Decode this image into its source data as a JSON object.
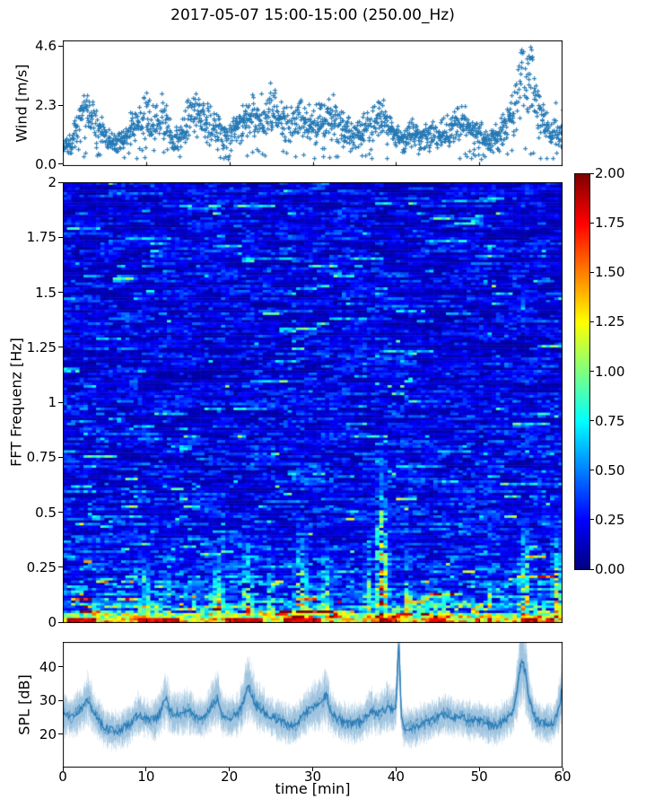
{
  "figure": {
    "title": "2017-05-07 15:00-15:00 (250.00_Hz)"
  },
  "colors": {
    "series_blue": "#2579b5",
    "spl_fuzz": "rgba(31,119,180,0.13)",
    "axis": "#000000",
    "colormap": "jet"
  },
  "wind_plot": {
    "ylabel": "Wind [m/s]",
    "ytick_labels": [
      "0.0",
      "2.3",
      "4.6"
    ],
    "ytick_values": [
      0,
      2.3,
      4.6
    ]
  },
  "spectrogram": {
    "ylabel": "FFT Frequenz [Hz]",
    "ytick_labels": [
      "2",
      "1.75",
      "1.5",
      "1.25",
      "1",
      "0.75",
      "0.5",
      "0.25",
      "0"
    ],
    "ytick_values": [
      2,
      1.75,
      1.5,
      1.25,
      1,
      0.75,
      0.5,
      0.25,
      0
    ]
  },
  "colorbar": {
    "tick_labels": [
      "2.00",
      "1.75",
      "1.50",
      "1.25",
      "1.00",
      "0.75",
      "0.50",
      "0.25",
      "0.00"
    ],
    "tick_values": [
      2,
      1.75,
      1.5,
      1.25,
      1,
      0.75,
      0.5,
      0.25,
      0
    ],
    "clim": [
      0,
      2
    ]
  },
  "spl_plot": {
    "ylabel": "SPL [dB]",
    "xlabel": "time [min]",
    "ytick_labels": [
      "20",
      "30",
      "40"
    ],
    "ytick_values": [
      20,
      30,
      40
    ],
    "xtick_labels": [
      "0",
      "10",
      "20",
      "30",
      "40",
      "50",
      "60"
    ],
    "xtick_values": [
      0,
      10,
      20,
      30,
      40,
      50,
      60
    ]
  },
  "chart_data": [
    {
      "type": "scatter",
      "name": "wind_speed",
      "title": "2017-05-07 15:00-15:00 (250.00_Hz)",
      "ylabel": "Wind [m/s]",
      "marker": "+",
      "xlim": [
        0,
        60
      ],
      "ylim": [
        -0.07,
        4.81
      ],
      "yticks": [
        0.0,
        2.3,
        4.6
      ],
      "x_minutes": [
        0,
        1,
        2,
        3,
        4,
        5,
        6,
        7,
        8,
        9,
        10,
        11,
        12,
        13,
        14,
        15,
        16,
        17,
        18,
        19,
        20,
        21,
        22,
        23,
        24,
        25,
        26,
        27,
        28,
        29,
        30,
        31,
        32,
        33,
        34,
        35,
        36,
        37,
        38,
        39,
        40,
        41,
        42,
        43,
        44,
        45,
        46,
        47,
        48,
        49,
        50,
        51,
        52,
        53,
        54,
        55,
        56,
        57,
        58,
        59,
        60
      ],
      "mean_wind_mps": [
        0.6,
        0.9,
        1.7,
        2.1,
        1.6,
        1.1,
        0.8,
        0.9,
        1.3,
        1.7,
        1.9,
        1.5,
        1.9,
        1.2,
        1.0,
        1.8,
        2.0,
        1.7,
        1.6,
        1.2,
        1.1,
        1.4,
        1.8,
        2.0,
        1.8,
        2.1,
        1.7,
        1.7,
        1.9,
        1.6,
        1.5,
        1.7,
        1.9,
        1.6,
        1.3,
        1.1,
        1.3,
        1.6,
        1.9,
        1.4,
        1.1,
        1.0,
        1.2,
        1.0,
        1.2,
        1.1,
        1.3,
        1.5,
        1.6,
        1.4,
        1.1,
        0.9,
        1.1,
        1.4,
        2.1,
        3.2,
        3.4,
        2.1,
        1.5,
        1.2,
        1.4
      ],
      "max_wind_mps": 4.6,
      "max_wind_time_min": 55.6
    },
    {
      "type": "heatmap",
      "name": "fft_spectrogram",
      "ylabel": "FFT Frequenz [Hz]",
      "xlim_min": [
        0,
        60
      ],
      "ylim_hz": [
        0,
        2
      ],
      "colormap": "jet",
      "clim": [
        0,
        2
      ],
      "freq_profile": {
        "freqs_hz": [
          0,
          0.015,
          0.03,
          0.05,
          0.09,
          0.15,
          0.25,
          0.4,
          0.7,
          1.2,
          2.0
        ],
        "mean_level": [
          1.9,
          1.5,
          0.95,
          0.7,
          0.5,
          0.4,
          0.33,
          0.28,
          0.24,
          0.22,
          0.21
        ]
      },
      "events": [
        {
          "t_min": 4.0,
          "fmax_hz": 0.2,
          "strength": 1.2,
          "width_min": 1.2
        },
        {
          "t_min": 9.8,
          "fmax_hz": 0.4,
          "strength": 1.6,
          "width_min": 1.6
        },
        {
          "t_min": 12.6,
          "fmax_hz": 0.35,
          "strength": 1.5,
          "width_min": 1.0
        },
        {
          "t_min": 16.0,
          "fmax_hz": 0.35,
          "strength": 1.4,
          "width_min": 1.2
        },
        {
          "t_min": 18.7,
          "fmax_hz": 0.45,
          "strength": 1.6,
          "width_min": 1.6
        },
        {
          "t_min": 22.2,
          "fmax_hz": 0.5,
          "strength": 1.6,
          "width_min": 1.6
        },
        {
          "t_min": 25.0,
          "fmax_hz": 0.4,
          "strength": 1.4,
          "width_min": 1.2
        },
        {
          "t_min": 28.6,
          "fmax_hz": 0.55,
          "strength": 1.6,
          "width_min": 2.0
        },
        {
          "t_min": 31.6,
          "fmax_hz": 0.45,
          "strength": 1.5,
          "width_min": 1.4
        },
        {
          "t_min": 36.6,
          "fmax_hz": 0.5,
          "strength": 1.5,
          "width_min": 1.0
        },
        {
          "t_min": 38.3,
          "fmax_hz": 0.95,
          "strength": 1.9,
          "width_min": 1.6
        },
        {
          "t_min": 41.4,
          "fmax_hz": 0.5,
          "strength": 1.5,
          "width_min": 1.2
        },
        {
          "t_min": 44.0,
          "fmax_hz": 0.3,
          "strength": 1.3,
          "width_min": 1.0
        },
        {
          "t_min": 51.2,
          "fmax_hz": 0.35,
          "strength": 1.5,
          "width_min": 0.8
        },
        {
          "t_min": 55.5,
          "fmax_hz": 0.6,
          "strength": 1.7,
          "width_min": 1.4
        },
        {
          "t_min": 59.3,
          "fmax_hz": 0.55,
          "strength": 1.8,
          "width_min": 1.4
        }
      ],
      "bottom_band": {
        "freq_limit_hz": 0.025,
        "level_range": [
          0.95,
          2.0
        ],
        "red_segments_min": [
          [
            0.5,
            4
          ],
          [
            9,
            14
          ],
          [
            19.5,
            24
          ],
          [
            26.5,
            31
          ],
          [
            38,
            39.5
          ],
          [
            44,
            46
          ],
          [
            50.8,
            51.6
          ],
          [
            55,
            57
          ],
          [
            58,
            59.2
          ]
        ]
      }
    },
    {
      "type": "line",
      "name": "spl",
      "ylabel": "SPL [dB]",
      "xlabel": "time [min]",
      "xlim": [
        0,
        60
      ],
      "ylim": [
        10.1,
        47.4
      ],
      "yticks": [
        20,
        30,
        40
      ],
      "x_minutes": [
        0,
        1,
        2,
        3,
        4,
        5,
        6,
        7,
        8,
        9,
        10,
        11,
        12,
        13,
        14,
        15,
        16,
        17,
        18,
        19,
        20,
        21,
        22,
        23,
        24,
        25,
        26,
        27,
        28,
        29,
        30,
        31,
        32,
        33,
        34,
        35,
        36,
        37,
        38,
        39,
        40,
        41,
        42,
        43,
        44,
        45,
        46,
        47,
        48,
        49,
        50,
        51,
        52,
        53,
        54,
        55,
        56,
        57,
        58,
        59,
        60
      ],
      "mean_spl_db": [
        26,
        25,
        27,
        29,
        25,
        22,
        21,
        21.5,
        23,
        26,
        25,
        24,
        28,
        26,
        26,
        27,
        25,
        25,
        29,
        26,
        25,
        26,
        30,
        29,
        27,
        25,
        24,
        23,
        23,
        26,
        28,
        29,
        27,
        24.5,
        23.5,
        23,
        24,
        27,
        26,
        28,
        27,
        22,
        22,
        23,
        24,
        25,
        26,
        25,
        25,
        24,
        24,
        23,
        22.5,
        24,
        26,
        33,
        27,
        24,
        23,
        23.5,
        30
      ],
      "peaks": [
        {
          "t_min": 3.0,
          "spl_db": 30.5,
          "sigma_min": 0.3
        },
        {
          "t_min": 12.4,
          "spl_db": 30.0,
          "sigma_min": 0.25
        },
        {
          "t_min": 18.6,
          "spl_db": 30.5,
          "sigma_min": 0.25
        },
        {
          "t_min": 22.3,
          "spl_db": 33.5,
          "sigma_min": 0.4
        },
        {
          "t_min": 31.6,
          "spl_db": 31.5,
          "sigma_min": 0.25
        },
        {
          "t_min": 40.35,
          "spl_db": 46.0,
          "sigma_min": 0.16
        },
        {
          "t_min": 55.35,
          "spl_db": 40.5,
          "sigma_min": 0.5
        },
        {
          "t_min": 60.0,
          "spl_db": 33.0,
          "sigma_min": 0.2
        }
      ]
    }
  ]
}
